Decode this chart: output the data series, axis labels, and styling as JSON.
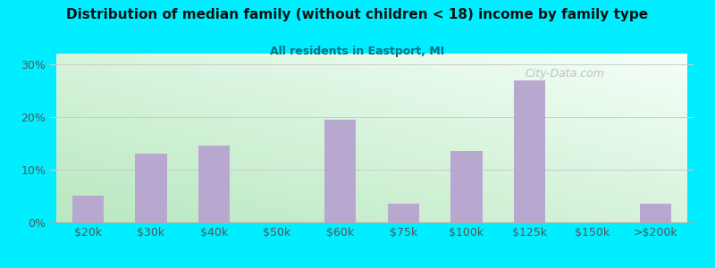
{
  "title": "Distribution of median family (without children < 18) income by family type",
  "subtitle": "All residents in Eastport, MI",
  "categories": [
    "$20k",
    "$30k",
    "$40k",
    "$50k",
    "$60k",
    "$75k",
    "$100k",
    "$125k",
    "$150k",
    ">$200k"
  ],
  "values": [
    5.0,
    13.0,
    14.5,
    0.0,
    19.5,
    3.5,
    13.5,
    27.0,
    0.0,
    3.5
  ],
  "bar_color": "#b8a8d0",
  "background_outer": "#00eeff",
  "title_color": "#111111",
  "subtitle_color": "#007080",
  "axis_label_color": "#555555",
  "ytick_values": [
    0,
    10,
    20,
    30
  ],
  "ylim": [
    0,
    32
  ],
  "grid_color": "#cccccc",
  "watermark": "City-Data.com",
  "grad_bottom_left": "#b8e8c0",
  "grad_top_right": "#f8feff"
}
